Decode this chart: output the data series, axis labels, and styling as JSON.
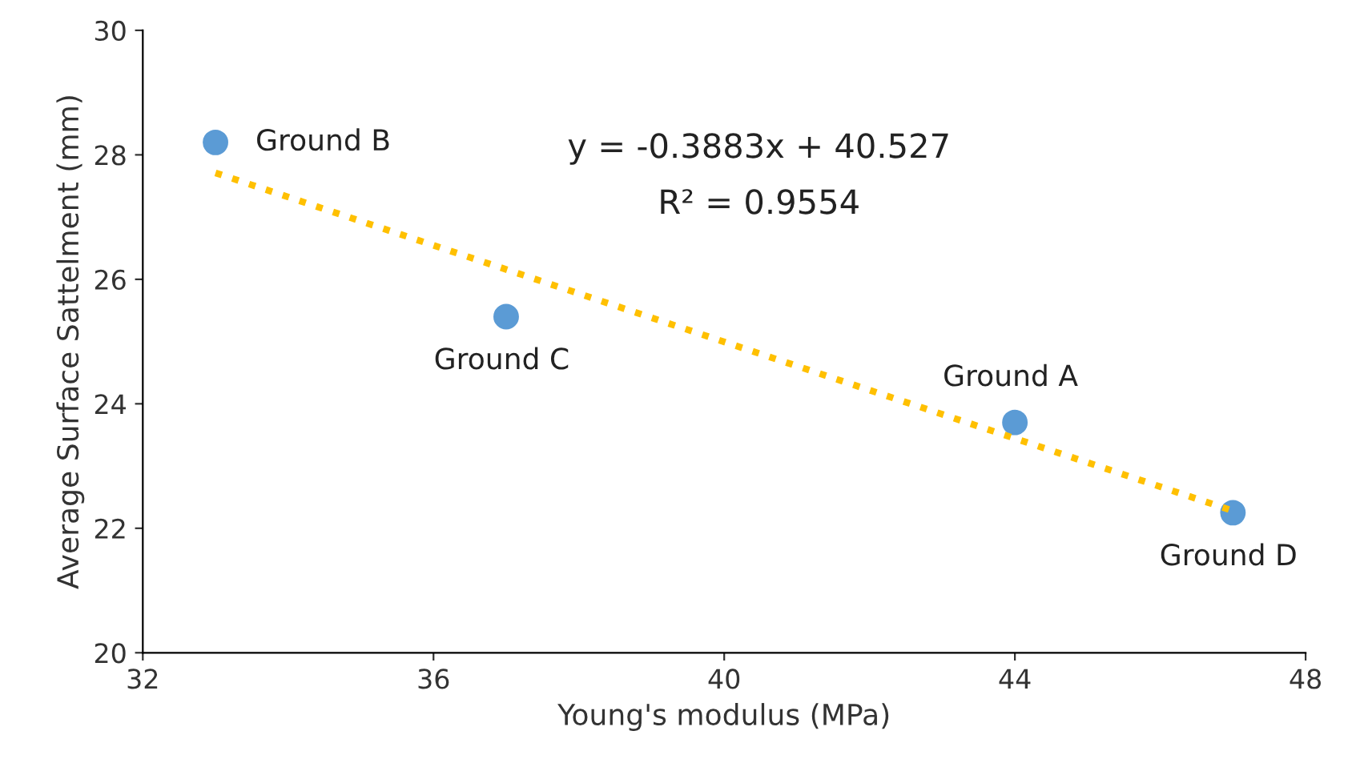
{
  "chart_data": {
    "type": "scatter",
    "xlabel": "Young's modulus (MPa)",
    "ylabel": "Average Surface Sattelment (mm)",
    "xlim": [
      32,
      48
    ],
    "xticks": [
      32,
      36,
      40,
      44,
      48
    ],
    "ylim": [
      20,
      30
    ],
    "yticks": [
      20,
      22,
      24,
      26,
      28,
      30
    ],
    "grid": false,
    "legend": false,
    "series": [
      {
        "color": "#5b9bd5",
        "marker": "circle",
        "x": [
          33,
          37,
          44,
          47
        ],
        "values": [
          28.2,
          25.4,
          23.7,
          22.25
        ]
      },
      {
        "type": "line",
        "color": "#ffc000",
        "line_style": "dotted",
        "x": [
          33,
          47
        ],
        "values": [
          27.71,
          22.28
        ]
      }
    ],
    "annotations": [
      {
        "text": "Ground B",
        "x": 33,
        "y": 28.2
      },
      {
        "text": "Ground C",
        "x": 37,
        "y": 25.4
      },
      {
        "text": "Ground A",
        "x": 44,
        "y": 23.7
      },
      {
        "text": "Ground D",
        "x": 47,
        "y": 22.25
      },
      "y = -0.3883x + 40.527",
      "R² = 0.9554"
    ]
  }
}
